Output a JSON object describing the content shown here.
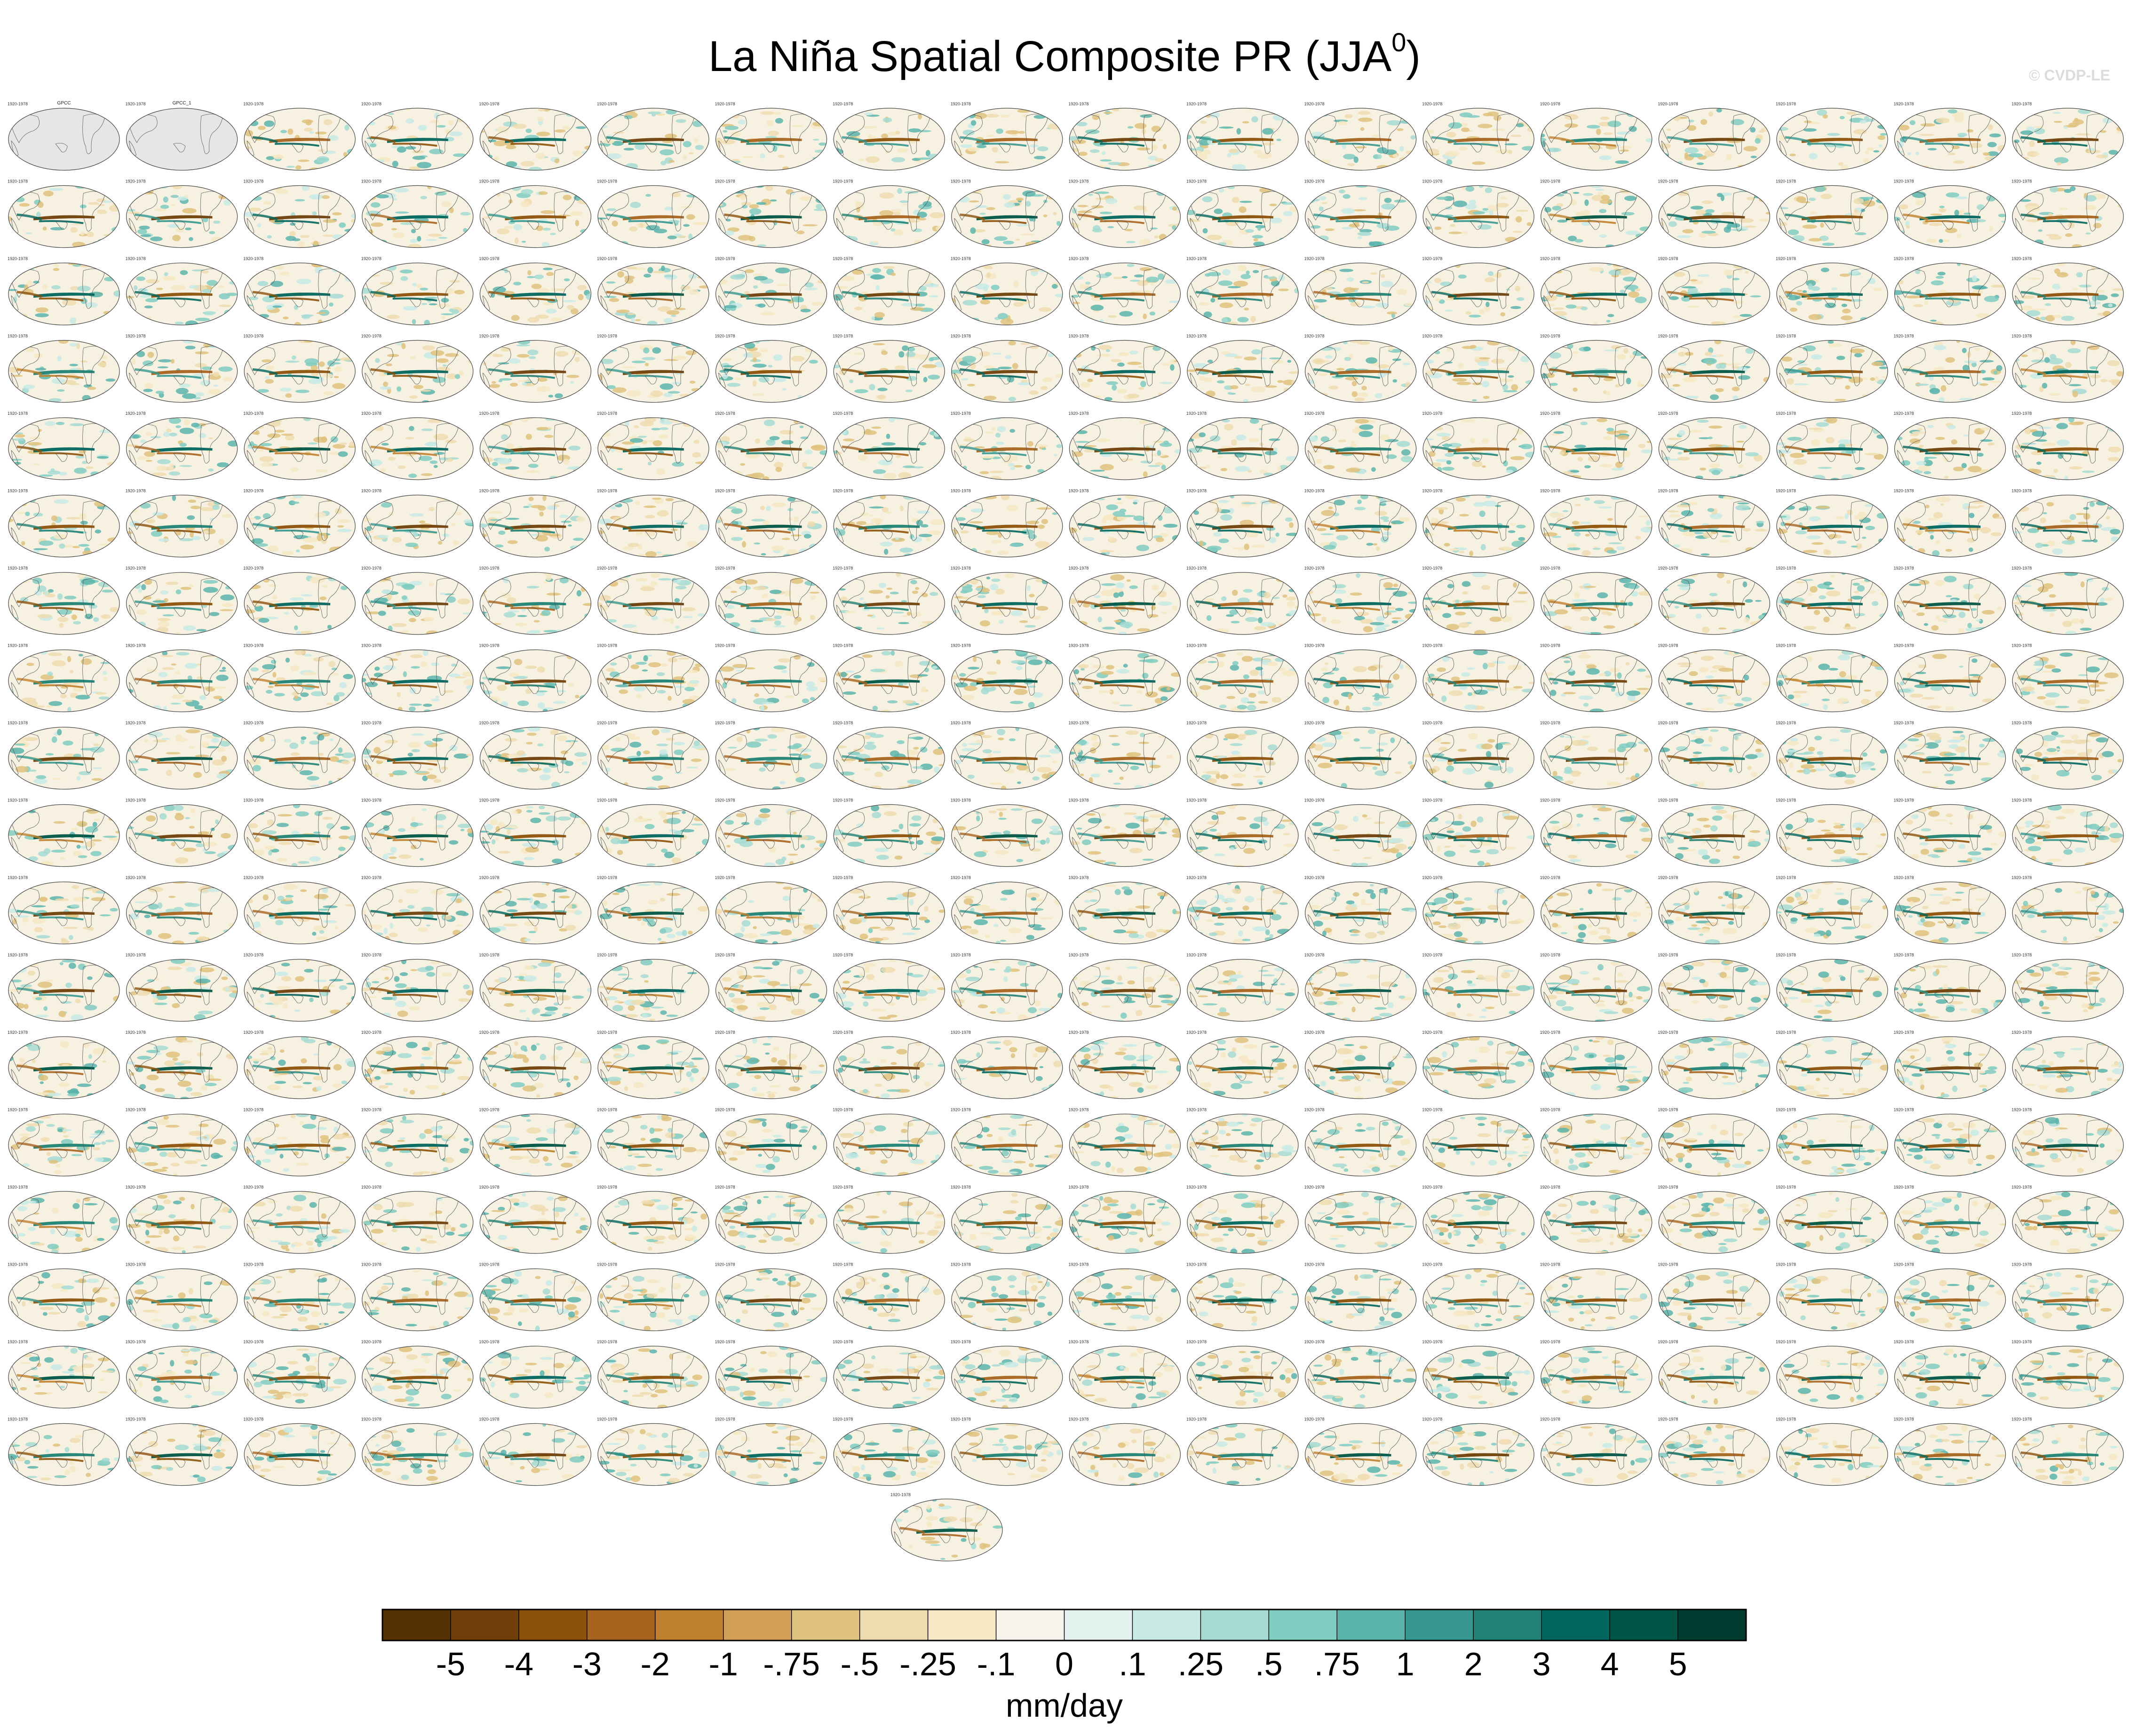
{
  "title": {
    "main": "La Niña Spatial Composite PR (JJA",
    "superscript": "0",
    "close": ")"
  },
  "watermark": "© CVDP-LE",
  "panels": {
    "rows": 18,
    "cols": 18,
    "extra_panel": 1,
    "period_label": "1920-1978",
    "observation_labels": [
      "GPCC",
      "GPCC_1"
    ],
    "member_label_colors": [
      "#4c9fd6",
      "#5aa6d8",
      "#b0b0b0",
      "#d89a8a",
      "#9a7fd6",
      "#b07ad0",
      "#c0c0c0"
    ]
  },
  "chart_data": {
    "type": "heatmap",
    "title": "La Niña Spatial Composite PR (JJA⁰)",
    "colorbar": {
      "units": "mm/day",
      "tick_labels": [
        "-5",
        "-4",
        "-3",
        "-2",
        "-1",
        "-.75",
        "-.5",
        "-.25",
        "-.1",
        "0",
        ".1",
        ".25",
        ".5",
        ".75",
        "1",
        "2",
        "3",
        "4",
        "5"
      ],
      "boundaries": [
        -5,
        -4,
        -3,
        -2,
        -1,
        -0.75,
        -0.5,
        -0.25,
        -0.1,
        0,
        0.1,
        0.25,
        0.5,
        0.75,
        1,
        2,
        3,
        4,
        5
      ],
      "colors": [
        "#543005",
        "#6f3f0a",
        "#8c510a",
        "#a6641f",
        "#bf812d",
        "#d09e57",
        "#dfc27d",
        "#eedcaf",
        "#f6e8c3",
        "#f5f3ec",
        "#e3f1ef",
        "#c7eae5",
        "#a5dbd2",
        "#80cdc1",
        "#5ab4ac",
        "#35978f",
        "#1f8275",
        "#01665e",
        "#015546",
        "#003c30"
      ]
    }
  }
}
